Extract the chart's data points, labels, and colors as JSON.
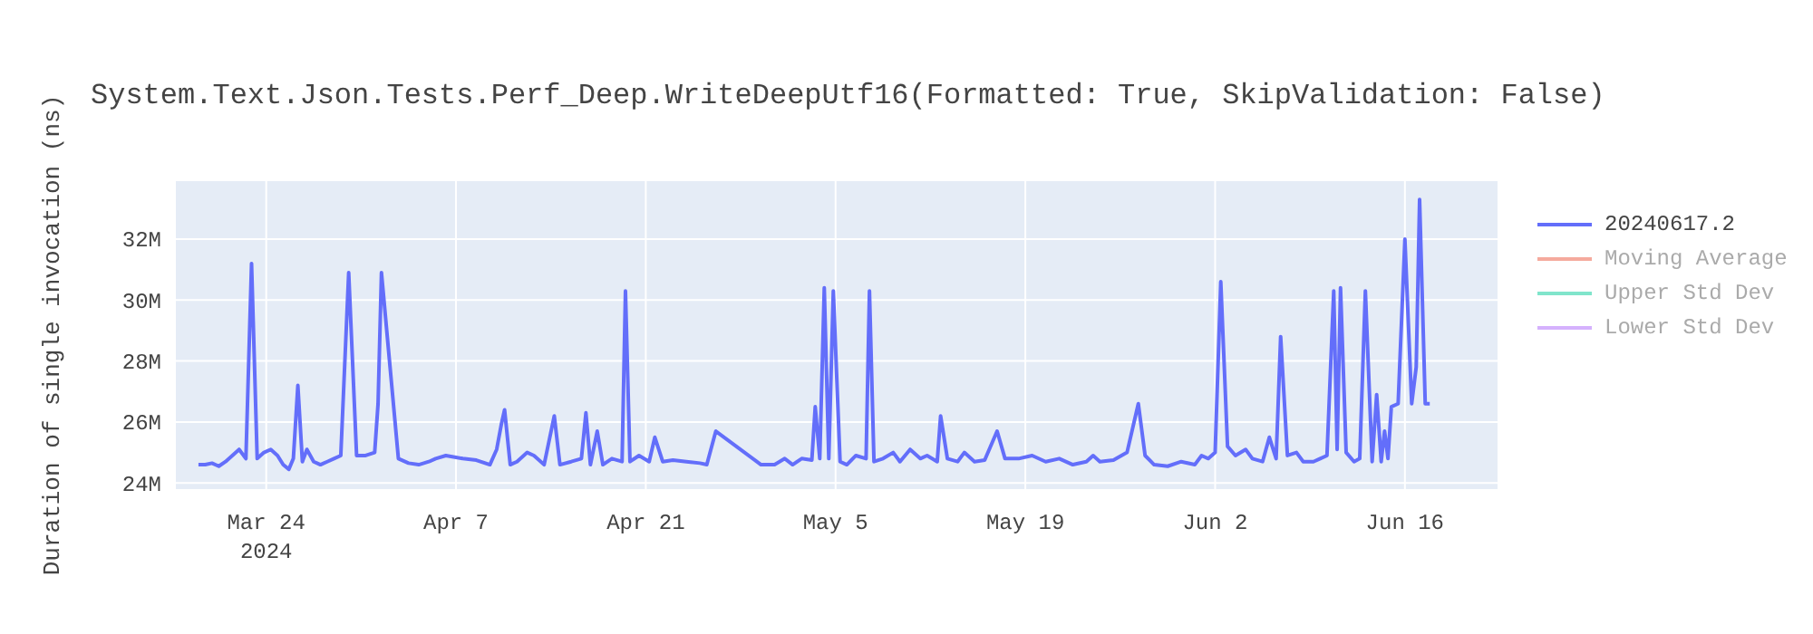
{
  "chart_data": {
    "type": "line",
    "title": "System.Text.Json.Tests.Perf_Deep.WriteDeepUtf16(Formatted: True, SkipValidation: False)",
    "ylabel": "Duration of single invocation (ns)",
    "x": [
      "2024-03-19T00:00",
      "2024-03-19T12:00",
      "2024-03-20T00:00",
      "2024-03-20T12:00",
      "2024-03-21T00:00",
      "2024-03-21T12:00",
      "2024-03-22T00:00",
      "2024-03-22T12:00",
      "2024-03-22T22:00",
      "2024-03-23T08:00",
      "2024-03-23T20:00",
      "2024-03-24T08:00",
      "2024-03-24T20:00",
      "2024-03-25T06:00",
      "2024-03-25T16:00",
      "2024-03-26T00:00",
      "2024-03-26T08:00",
      "2024-03-26T16:00",
      "2024-03-27T00:00",
      "2024-03-27T12:00",
      "2024-03-28T00:00",
      "2024-03-28T12:00",
      "2024-03-29T00:00",
      "2024-03-29T12:00",
      "2024-03-30T02:00",
      "2024-03-30T16:00",
      "2024-03-31T08:00",
      "2024-04-01T00:00",
      "2024-04-01T06:00",
      "2024-04-01T12:00",
      "2024-04-02T18:00",
      "2024-04-03T12:00",
      "2024-04-04T06:00",
      "2024-04-05T00:00",
      "2024-04-05T12:00",
      "2024-04-06T06:00",
      "2024-04-07T12:00",
      "2024-04-08T12:00",
      "2024-04-09T12:00",
      "2024-04-10T00:00",
      "2024-04-10T08:00",
      "2024-04-10T14:00",
      "2024-04-11T00:00",
      "2024-04-11T12:00",
      "2024-04-12T06:00",
      "2024-04-12T18:00",
      "2024-04-13T12:00",
      "2024-04-14T06:00",
      "2024-04-14T16:00",
      "2024-04-15T12:00",
      "2024-04-16T06:00",
      "2024-04-16T14:00",
      "2024-04-16T22:00",
      "2024-04-17T10:00",
      "2024-04-17T20:00",
      "2024-04-18T12:00",
      "2024-04-19T06:00",
      "2024-04-19T12:00",
      "2024-04-19T20:00",
      "2024-04-20T12:00",
      "2024-04-21T06:00",
      "2024-04-21T16:00",
      "2024-04-22T06:00",
      "2024-04-23T00:00",
      "2024-04-24T00:00",
      "2024-04-25T00:00",
      "2024-04-25T12:00",
      "2024-04-26T04:00",
      "2024-04-29T12:00",
      "2024-04-30T12:00",
      "2024-05-01T06:00",
      "2024-05-01T20:00",
      "2024-05-02T12:00",
      "2024-05-03T06:00",
      "2024-05-03T12:00",
      "2024-05-03T20:00",
      "2024-05-04T04:00",
      "2024-05-04T12:00",
      "2024-05-04T20:00",
      "2024-05-05T08:00",
      "2024-05-05T20:00",
      "2024-05-06T12:00",
      "2024-05-07T06:00",
      "2024-05-07T12:00",
      "2024-05-07T20:00",
      "2024-05-08T12:00",
      "2024-05-09T06:00",
      "2024-05-09T18:00",
      "2024-05-10T12:00",
      "2024-05-11T06:00",
      "2024-05-11T18:00",
      "2024-05-12T12:00",
      "2024-05-12T18:00",
      "2024-05-13T06:00",
      "2024-05-14T00:00",
      "2024-05-14T12:00",
      "2024-05-15T06:00",
      "2024-05-16T00:00",
      "2024-05-16T22:00",
      "2024-05-17T12:00",
      "2024-05-18T12:00",
      "2024-05-19T12:00",
      "2024-05-20T12:00",
      "2024-05-21T12:00",
      "2024-05-22T12:00",
      "2024-05-23T12:00",
      "2024-05-24T00:00",
      "2024-05-24T12:00",
      "2024-05-25T12:00",
      "2024-05-26T12:00",
      "2024-05-27T08:00",
      "2024-05-27T20:00",
      "2024-05-28T12:00",
      "2024-05-29T12:00",
      "2024-05-30T12:00",
      "2024-05-31T12:00",
      "2024-06-01T00:00",
      "2024-06-01T12:00",
      "2024-06-02T00:00",
      "2024-06-02T10:00",
      "2024-06-02T22:00",
      "2024-06-03T12:00",
      "2024-06-04T06:00",
      "2024-06-04T18:00",
      "2024-06-05T12:00",
      "2024-06-06T00:00",
      "2024-06-06T12:00",
      "2024-06-06T20:00",
      "2024-06-07T08:00",
      "2024-06-08T00:00",
      "2024-06-08T12:00",
      "2024-06-09T06:00",
      "2024-06-09T18:00",
      "2024-06-10T06:00",
      "2024-06-10T18:00",
      "2024-06-11T00:00",
      "2024-06-11T06:00",
      "2024-06-11T16:00",
      "2024-06-12T06:00",
      "2024-06-12T16:00",
      "2024-06-13T02:00",
      "2024-06-13T14:00",
      "2024-06-13T22:00",
      "2024-06-14T06:00",
      "2024-06-14T12:00",
      "2024-06-14T18:00",
      "2024-06-15T00:00",
      "2024-06-15T12:00",
      "2024-06-16T00:00",
      "2024-06-16T12:00",
      "2024-06-16T20:00",
      "2024-06-17T02:00",
      "2024-06-17T12:00",
      "2024-06-17T20:00"
    ],
    "series": [
      {
        "name": "20240617.2",
        "color": "#636efa",
        "values": [
          24600000,
          24600000,
          24650000,
          24550000,
          24700000,
          24900000,
          25100000,
          24800000,
          31200000,
          24800000,
          25000000,
          25100000,
          24900000,
          24600000,
          24450000,
          24800000,
          27200000,
          24700000,
          25100000,
          24700000,
          24600000,
          24700000,
          24800000,
          24900000,
          30900000,
          24900000,
          24900000,
          25000000,
          26600000,
          30900000,
          24800000,
          24650000,
          24600000,
          24700000,
          24800000,
          24900000,
          24800000,
          24750000,
          24600000,
          25100000,
          25900000,
          26400000,
          24600000,
          24700000,
          25000000,
          24900000,
          24600000,
          26200000,
          24600000,
          24700000,
          24800000,
          26300000,
          24600000,
          25700000,
          24600000,
          24800000,
          24700000,
          30300000,
          24700000,
          24900000,
          24700000,
          25500000,
          24700000,
          24750000,
          24700000,
          24650000,
          24600000,
          25700000,
          24600000,
          24600000,
          24800000,
          24600000,
          24800000,
          24750000,
          26500000,
          24800000,
          30400000,
          24800000,
          30300000,
          24700000,
          24600000,
          24900000,
          24800000,
          30300000,
          24700000,
          24800000,
          25000000,
          24700000,
          25100000,
          24800000,
          24900000,
          24700000,
          26200000,
          24800000,
          24700000,
          25000000,
          24700000,
          24750000,
          25700000,
          24800000,
          24800000,
          24900000,
          24700000,
          24800000,
          24600000,
          24700000,
          24900000,
          24700000,
          24750000,
          25000000,
          26600000,
          24900000,
          24600000,
          24550000,
          24700000,
          24600000,
          24900000,
          24800000,
          25000000,
          30600000,
          25200000,
          24900000,
          25100000,
          24800000,
          24700000,
          25500000,
          24800000,
          28800000,
          24900000,
          25000000,
          24700000,
          24700000,
          24800000,
          24900000,
          30300000,
          25100000,
          30400000,
          25000000,
          24700000,
          24800000,
          30300000,
          24700000,
          26900000,
          24700000,
          25700000,
          24800000,
          26500000,
          26600000,
          32000000,
          26600000,
          27800000,
          33300000,
          26600000,
          26600000
        ]
      },
      {
        "name": "Moving Average",
        "color": "#f5aa9d",
        "values": [
          null,
          null,
          null,
          null,
          null,
          null,
          null,
          null,
          null,
          null,
          null,
          null,
          null,
          null,
          null,
          null,
          null,
          null,
          null,
          null,
          null,
          null,
          null,
          null,
          null,
          null,
          null,
          null,
          null,
          null,
          null,
          null,
          null,
          null,
          null,
          null,
          null,
          null,
          null,
          null,
          null,
          null,
          null,
          null,
          null,
          null,
          null,
          null,
          null,
          null,
          null,
          null,
          null,
          null,
          null,
          null,
          null,
          null,
          null,
          null,
          null,
          null,
          null,
          null,
          null,
          null,
          null,
          null,
          null,
          null,
          null,
          null,
          null,
          null,
          null,
          null,
          null,
          null,
          null,
          null,
          null,
          null,
          null,
          null,
          null,
          null,
          null,
          null,
          null,
          null,
          null,
          null,
          null,
          null,
          null,
          null,
          null,
          null,
          null,
          null,
          null,
          null,
          null,
          null,
          null,
          null,
          null,
          null,
          null,
          null,
          null,
          null,
          null,
          null,
          null,
          null,
          null,
          null,
          null,
          null,
          null,
          null,
          null,
          null,
          null,
          null,
          null,
          null,
          null,
          null,
          null,
          null,
          null,
          null,
          null,
          null,
          null,
          null,
          null,
          null,
          null,
          null,
          null,
          null,
          null,
          null,
          null,
          null,
          null,
          null,
          null,
          null,
          null,
          null
        ]
      },
      {
        "name": "Upper Std Dev",
        "color": "#80e5cb",
        "values": [
          null,
          null,
          null,
          null,
          null,
          null,
          null,
          null,
          null,
          null,
          null,
          null,
          null,
          null,
          null,
          null,
          null,
          null,
          null,
          null,
          null,
          null,
          null,
          null,
          null,
          null,
          null,
          null,
          null,
          null,
          null,
          null,
          null,
          null,
          null,
          null,
          null,
          null,
          null,
          null,
          null,
          null,
          null,
          null,
          null,
          null,
          null,
          null,
          null,
          null,
          null,
          null,
          null,
          null,
          null,
          null,
          null,
          null,
          null,
          null,
          null,
          null,
          null,
          null,
          null,
          null,
          null,
          null,
          null,
          null,
          null,
          null,
          null,
          null,
          null,
          null,
          null,
          null,
          null,
          null,
          null,
          null,
          null,
          null,
          null,
          null,
          null,
          null,
          null,
          null,
          null,
          null,
          null,
          null,
          null,
          null,
          null,
          null,
          null,
          null,
          null,
          null,
          null,
          null,
          null,
          null,
          null,
          null,
          null,
          null,
          null,
          null,
          null,
          null,
          null,
          null,
          null,
          null,
          null,
          null,
          null,
          null,
          null,
          null,
          null,
          null,
          null,
          null,
          null,
          null,
          null,
          null,
          null,
          null,
          null,
          null,
          null,
          null,
          null,
          null,
          null,
          null,
          null,
          null,
          null,
          null,
          null,
          null,
          null,
          null,
          null,
          null,
          null,
          null
        ]
      },
      {
        "name": "Lower Std Dev",
        "color": "#d5b1fd",
        "values": [
          null,
          null,
          null,
          null,
          null,
          null,
          null,
          null,
          null,
          null,
          null,
          null,
          null,
          null,
          null,
          null,
          null,
          null,
          null,
          null,
          null,
          null,
          null,
          null,
          null,
          null,
          null,
          null,
          null,
          null,
          null,
          null,
          null,
          null,
          null,
          null,
          null,
          null,
          null,
          null,
          null,
          null,
          null,
          null,
          null,
          null,
          null,
          null,
          null,
          null,
          null,
          null,
          null,
          null,
          null,
          null,
          null,
          null,
          null,
          null,
          null,
          null,
          null,
          null,
          null,
          null,
          null,
          null,
          null,
          null,
          null,
          null,
          null,
          null,
          null,
          null,
          null,
          null,
          null,
          null,
          null,
          null,
          null,
          null,
          null,
          null,
          null,
          null,
          null,
          null,
          null,
          null,
          null,
          null,
          null,
          null,
          null,
          null,
          null,
          null,
          null,
          null,
          null,
          null,
          null,
          null,
          null,
          null,
          null,
          null,
          null,
          null,
          null,
          null,
          null,
          null,
          null,
          null,
          null,
          null,
          null,
          null,
          null,
          null,
          null,
          null,
          null,
          null,
          null,
          null,
          null,
          null,
          null,
          null,
          null,
          null,
          null,
          null,
          null,
          null,
          null,
          null,
          null,
          null,
          null,
          null,
          null,
          null,
          null,
          null,
          null,
          null,
          null,
          null
        ]
      }
    ],
    "xlim": [
      "2024-03-17T08:00",
      "2024-06-22T20:00"
    ],
    "xticks": [
      {
        "value": "2024-03-24",
        "label": "Mar 24\n2024"
      },
      {
        "value": "2024-04-07",
        "label": "Apr 7"
      },
      {
        "value": "2024-04-21",
        "label": "Apr 21"
      },
      {
        "value": "2024-05-05",
        "label": "May 5"
      },
      {
        "value": "2024-05-19",
        "label": "May 19"
      },
      {
        "value": "2024-06-02",
        "label": "Jun 2"
      },
      {
        "value": "2024-06-16",
        "label": "Jun 16"
      }
    ],
    "ylim": [
      23800000,
      33900000
    ],
    "yticks": [
      {
        "value": 24000000,
        "label": "24M"
      },
      {
        "value": 26000000,
        "label": "26M"
      },
      {
        "value": 28000000,
        "label": "28M"
      },
      {
        "value": 30000000,
        "label": "30M"
      },
      {
        "value": 32000000,
        "label": "32M"
      }
    ],
    "grid": true,
    "legend": "right",
    "line_style": "solid"
  }
}
